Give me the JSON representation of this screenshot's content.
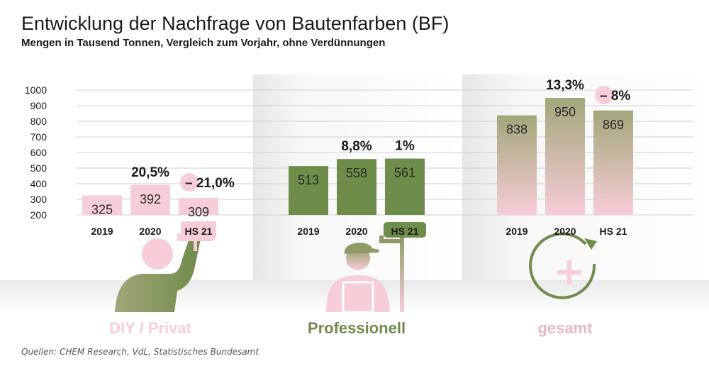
{
  "title": "Entwicklung der Nachfrage von Bautenfarben (BF)",
  "subtitle": "Mengen in Tausend Tonnen, Vergleich zum Vorjahr, ohne Verdünnungen",
  "source": "Quellen: CHEM Research, VdL, Statistisches Bundesamt",
  "colors": {
    "pink": "#f7cdd8",
    "green": "#6e8c4a",
    "gradient_top": "#a3a67a",
    "gradient_bottom": "#f7cdd8",
    "grid": "#cfcfcf",
    "text": "#1a1a1a"
  },
  "chart_data": {
    "type": "bar",
    "title": "Entwicklung der Nachfrage von Bautenfarben (BF)",
    "subtitle": "Mengen in Tausend Tonnen, Vergleich zum Vorjahr, ohne Verdünnungen",
    "ylim": [
      200,
      1000
    ],
    "yticks": [
      200,
      300,
      400,
      500,
      600,
      700,
      800,
      900,
      1000
    ],
    "grid": true,
    "groups": [
      {
        "name": "DIY / Privat",
        "icon": "person-with-paint-roller-icon",
        "bar_style": "pink",
        "categories": [
          "2019",
          "2020",
          "HS 21"
        ],
        "values": [
          325,
          392,
          309
        ],
        "value_labels": [
          "325",
          "392",
          "309"
        ],
        "changes": [
          null,
          "20,5%",
          "– 21,0%"
        ]
      },
      {
        "name": "Professionell",
        "icon": "painter-with-cap-icon",
        "bar_style": "green",
        "categories": [
          "2019",
          "2020",
          "HS 21"
        ],
        "values": [
          513,
          558,
          561
        ],
        "value_labels": [
          "513",
          "558",
          "561"
        ],
        "changes": [
          null,
          "8,8%",
          "1%"
        ]
      },
      {
        "name": "gesamt",
        "icon": "plus-cycle-icon",
        "bar_style": "gradient",
        "categories": [
          "2019",
          "2020",
          "HS 21"
        ],
        "values": [
          838,
          950,
          869
        ],
        "value_labels": [
          "838",
          "950",
          "869"
        ],
        "changes": [
          null,
          "13,3%",
          "– 8%"
        ]
      }
    ]
  }
}
